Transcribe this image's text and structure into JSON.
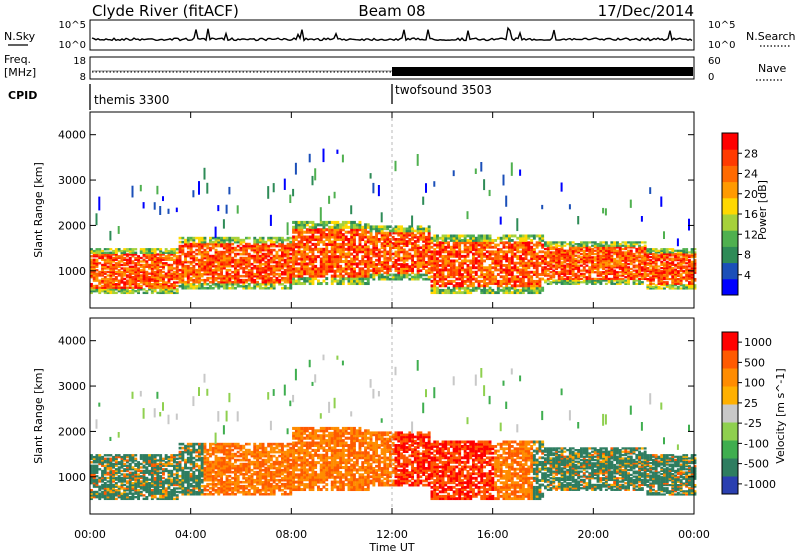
{
  "header": {
    "title_left": "Clyde River (fitACF)",
    "title_center": "Beam 08",
    "title_right": "17/Dec/2014"
  },
  "noise_panel": {
    "left_label": "N.Sky",
    "left_ticks": [
      "10^5",
      "10^0"
    ],
    "right_label": "N.Search",
    "right_ticks": [
      "10^5",
      "10^0"
    ]
  },
  "freq_panel": {
    "left_label_line1": "Freq.",
    "left_label_line2": "[MHz]",
    "left_ticks": [
      "18",
      "8"
    ],
    "right_label": "Nave",
    "right_ticks": [
      "60",
      "0"
    ]
  },
  "cpid": {
    "label": "CPID",
    "mode1": "themis 3300",
    "mode2": "twofsound 3503"
  },
  "colors": {
    "power": [
      "#0000ff",
      "#1b4fb8",
      "#2e8b57",
      "#4fb04f",
      "#a6d13a",
      "#ffd800",
      "#ff9a00",
      "#ff6a00",
      "#ff3a00",
      "#ff0000"
    ],
    "velocity": [
      "#2a3fb0",
      "#2e7d60",
      "#3fae4f",
      "#8fd04f",
      "#c8c8c8",
      "#ffb000",
      "#ff8c00",
      "#ff5a00",
      "#ff0000"
    ]
  },
  "chart_data": [
    {
      "type": "heatmap",
      "name": "power",
      "ylabel": "Slant Range [km]",
      "y_ticks": [
        "1000",
        "2000",
        "3000",
        "4000"
      ],
      "ylim": [
        180,
        4500
      ],
      "xlim_hours": [
        0,
        24
      ],
      "colorbar_label": "Power [dB]",
      "colorbar_ticks": [
        "4",
        "8",
        "12",
        "16",
        "20",
        "24",
        "28"
      ],
      "colorbar_range": [
        0,
        32
      ]
    },
    {
      "type": "heatmap",
      "name": "velocity",
      "ylabel": "Slant Range [km]",
      "y_ticks": [
        "1000",
        "2000",
        "3000",
        "4000"
      ],
      "ylim": [
        180,
        4500
      ],
      "xlim_hours": [
        0,
        24
      ],
      "xlabel": "Time UT",
      "x_ticks": [
        "00:00",
        "04:00",
        "08:00",
        "12:00",
        "16:00",
        "20:00",
        "00:00"
      ],
      "colorbar_label": "Velocity [m s^-1]",
      "colorbar_ticks": [
        "1000",
        "500",
        "100",
        "25",
        "-25",
        "-100",
        "-500",
        "-1000"
      ]
    }
  ]
}
